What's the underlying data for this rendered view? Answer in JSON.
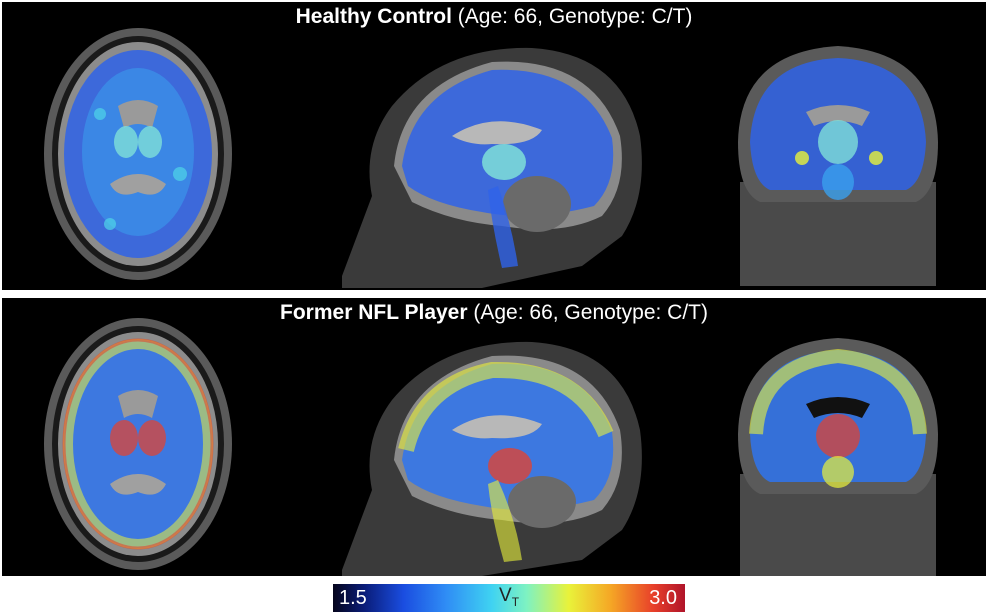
{
  "panels": [
    {
      "group": "Healthy Control",
      "details": "(Age: 66, Genotype: C/T)",
      "overlay": [
        "#2a4fe0",
        "#3aa8f0",
        "#4fd6e8"
      ]
    },
    {
      "group": "Former NFL Player",
      "details": "(Age: 66, Genotype: C/T)",
      "overlay": [
        "#2a6af0",
        "#3fd2e0",
        "#e9f23a"
      ]
    }
  ],
  "colorbar": {
    "min": "1.5",
    "label": "V",
    "label_sub": "T",
    "max": "3.0"
  },
  "colors": {
    "low": "#0a1d7a",
    "mid": "#3fd2f2",
    "high": "#e8402a"
  }
}
